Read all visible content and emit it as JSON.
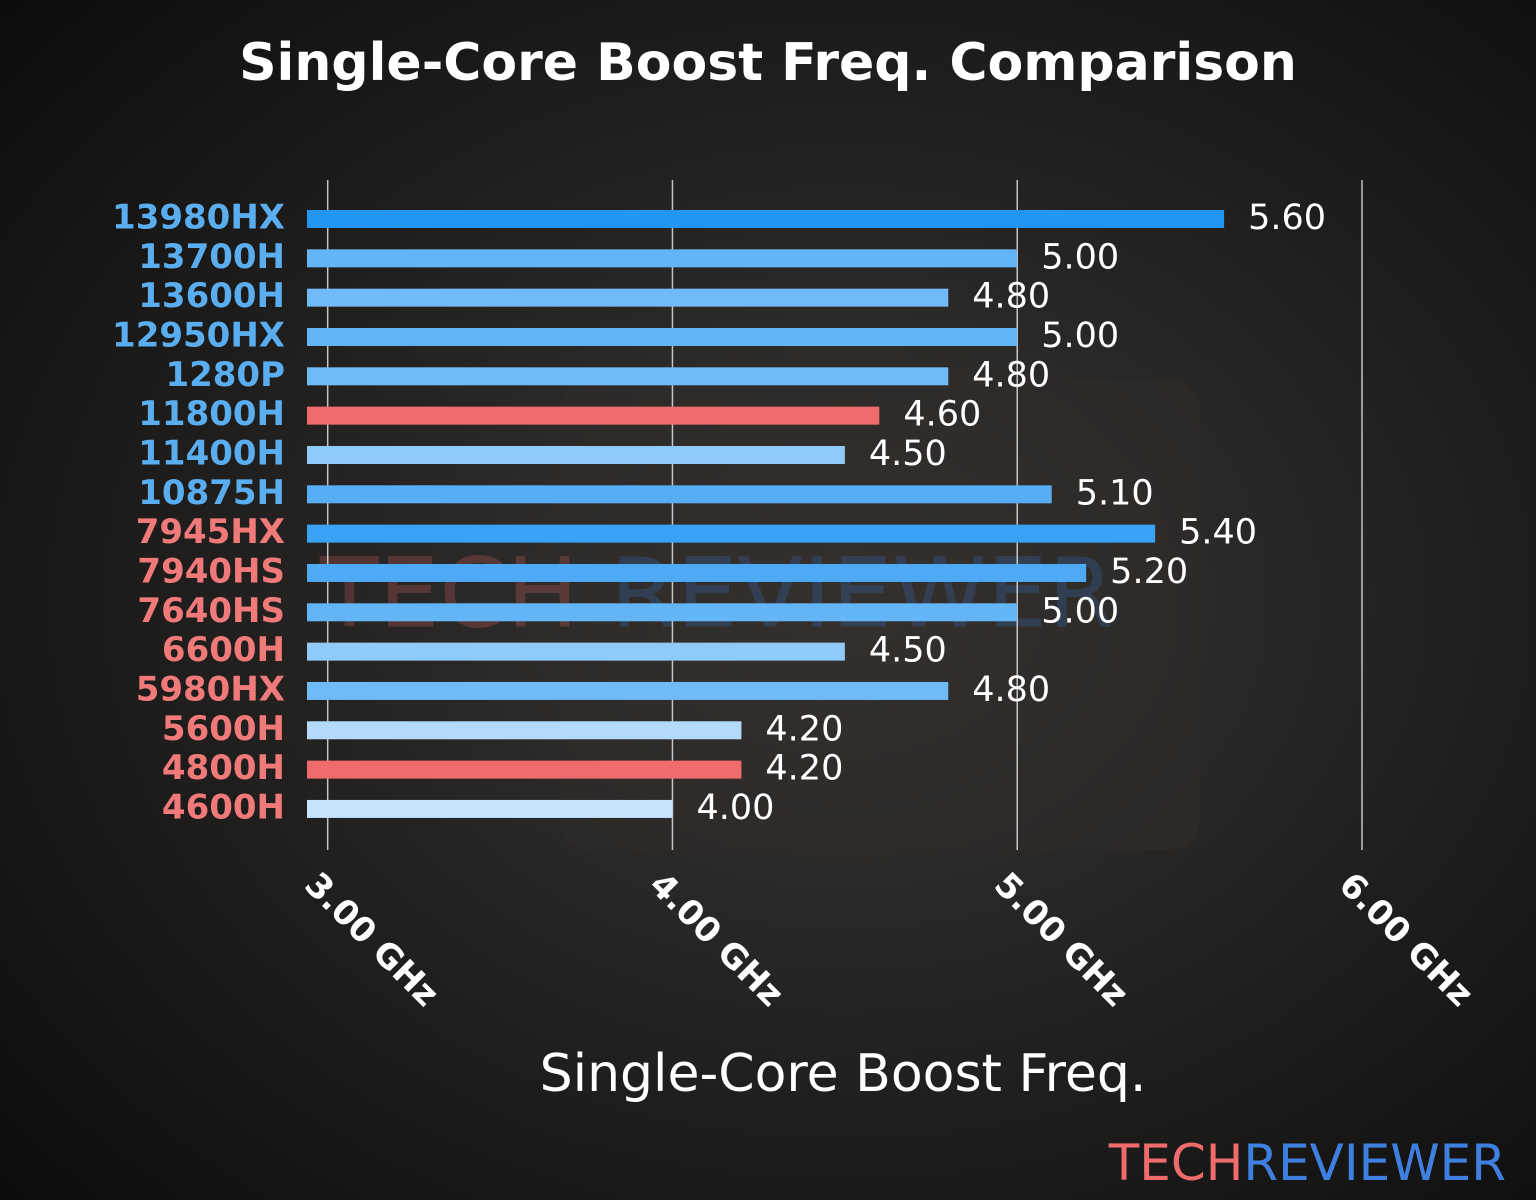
{
  "chart_data": {
    "type": "barh",
    "title": "Single-Core Boost Freq. Comparison",
    "x_label": "Single-Core Boost Freq.",
    "categories": [
      "13980HX",
      "13700H",
      "13600H",
      "12950HX",
      "1280P",
      "11800H",
      "11400H",
      "10875H",
      "7945HX",
      "7940HS",
      "7640HS",
      "6600H",
      "5980HX",
      "5600H",
      "4800H",
      "4600H"
    ],
    "category_colors": [
      "#5aaef0",
      "#5aaef0",
      "#5aaef0",
      "#5aaef0",
      "#5aaef0",
      "#5aaef0",
      "#5aaef0",
      "#5aaef0",
      "#f07a7a",
      "#f07a7a",
      "#f07a7a",
      "#f07a7a",
      "#f07a7a",
      "#f07a7a",
      "#f07a7a",
      "#f07a7a"
    ],
    "values": [
      5.6,
      5.0,
      4.8,
      5.0,
      4.8,
      4.6,
      4.5,
      5.1,
      5.4,
      5.2,
      5.0,
      4.5,
      4.8,
      4.2,
      4.2,
      4.0
    ],
    "value_labels": [
      "5.60",
      "5.00",
      "4.80",
      "5.00",
      "4.80",
      "4.60",
      "4.50",
      "5.10",
      "5.40",
      "5.20",
      "5.00",
      "4.50",
      "4.80",
      "4.20",
      "4.20",
      "4.00"
    ],
    "colors": [
      "#2196f3",
      "#64b5f6",
      "#6fbaf7",
      "#64b5f6",
      "#6fbaf7",
      "#f06b6b",
      "#90caf9",
      "#57aef5",
      "#3aa2f4",
      "#4eaaf5",
      "#64b5f6",
      "#90caf9",
      "#6fbaf7",
      "#b3d9fb",
      "#f06b6b",
      "#c5e3fc"
    ],
    "xlim": [
      2.94,
      6.0
    ],
    "xticks": [
      {
        "value": 3,
        "label": "3.00 GHz"
      },
      {
        "value": 4,
        "label": "4.00 GHz"
      },
      {
        "value": 5,
        "label": "5.00 GHz"
      },
      {
        "value": 6,
        "label": "6.00 GHz"
      }
    ],
    "grid": true,
    "watermark": [
      "TECH",
      "REVIEWER"
    ]
  }
}
